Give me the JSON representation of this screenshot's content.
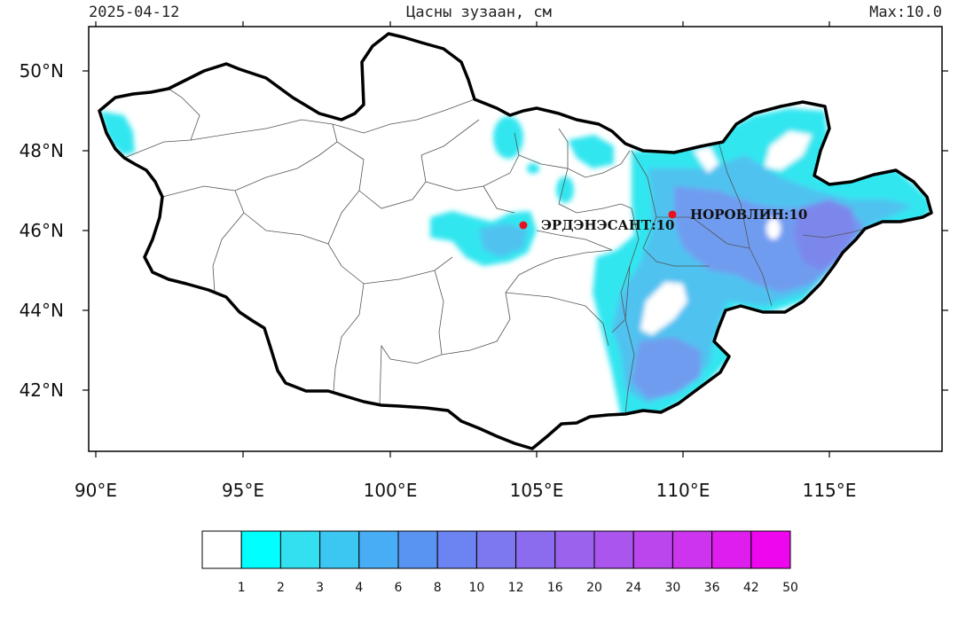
{
  "header": {
    "date": "2025-04-12",
    "title": "Цасны зузаан, см",
    "max": "Max:10.0"
  },
  "map": {
    "lon_range": [
      90,
      119
    ],
    "lat_range": [
      40.4,
      51.0
    ],
    "x_ticks": [
      "90°E",
      "95°E",
      "100°E",
      "105°E",
      "110°E",
      "115°E"
    ],
    "y_ticks": [
      "50°N",
      "48°N",
      "46°N",
      "44°N",
      "42°N"
    ],
    "stations": [
      {
        "name": "ЭРДЭНЭСАНТ",
        "value": "10",
        "label": "ЭРДЭНЭСАНТ:10",
        "color": "#e8121e"
      },
      {
        "name": "НОРОВЛИН",
        "value": "10",
        "label": "НОРОВЛИН:10",
        "color": "#e8121e"
      }
    ],
    "snow_colors": {
      "light": "#33e6f0",
      "mid": "#4fc2f0",
      "deep": "#6f9cf0",
      "max": "#7b87ec"
    }
  },
  "colorbar": {
    "colors": [
      "#ffffff",
      "#00ffff",
      "#33e0f0",
      "#3cc6f2",
      "#48adf4",
      "#5a94f3",
      "#6b84f2",
      "#7d78ee",
      "#8c6cee",
      "#9b62ee",
      "#aa55ee",
      "#bb46ee",
      "#cc34ee",
      "#dd1eee",
      "#ee06ee"
    ],
    "labels": [
      "1",
      "2",
      "3",
      "4",
      "6",
      "8",
      "10",
      "12",
      "16",
      "20",
      "24",
      "30",
      "36",
      "42",
      "50"
    ]
  }
}
